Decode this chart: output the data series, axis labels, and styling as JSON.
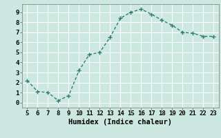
{
  "x": [
    5,
    6,
    7,
    8,
    9,
    10,
    11,
    12,
    13,
    14,
    15,
    16,
    17,
    18,
    19,
    20,
    21,
    22,
    23
  ],
  "y": [
    2.2,
    1.1,
    1.0,
    0.2,
    0.7,
    3.2,
    4.8,
    5.0,
    6.5,
    8.4,
    9.0,
    9.3,
    8.8,
    8.2,
    7.7,
    7.0,
    6.9,
    6.6,
    6.6
  ],
  "line_color": "#2e7d6e",
  "marker": "+",
  "marker_color": "#2e7d6e",
  "bg_color": "#cce8e0",
  "grid_color": "#ffffff",
  "xlabel": "Humidex (Indice chaleur)",
  "xlabel_fontsize": 7.5,
  "xlim": [
    4.5,
    23.5
  ],
  "ylim": [
    -0.5,
    9.8
  ],
  "yticks": [
    0,
    1,
    2,
    3,
    4,
    5,
    6,
    7,
    8,
    9
  ],
  "xticks": [
    5,
    6,
    7,
    8,
    9,
    10,
    11,
    12,
    13,
    14,
    15,
    16,
    17,
    18,
    19,
    20,
    21,
    22,
    23
  ],
  "tick_fontsize": 6.5,
  "linewidth": 1.0,
  "markersize": 4,
  "markeredgewidth": 1.0
}
